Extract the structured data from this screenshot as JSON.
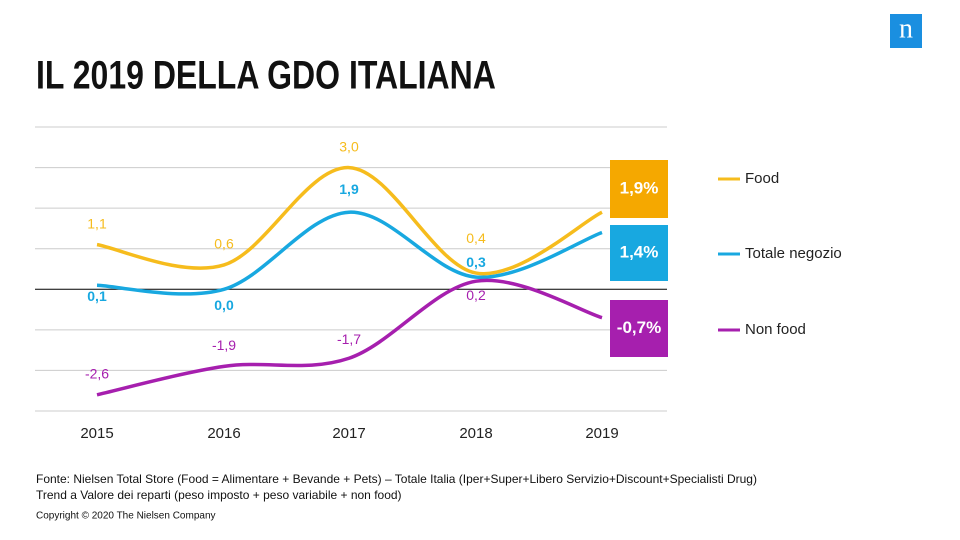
{
  "logo": "n",
  "chart_data": {
    "type": "line",
    "title": "IL 2019 DELLA GDO ITALIANA",
    "categories": [
      "2015",
      "2016",
      "2017",
      "2018",
      "2019"
    ],
    "series": [
      {
        "name": "Food",
        "color": "#f6bc1d",
        "box_color": "#f5a800",
        "values": [
          1.1,
          0.6,
          3.0,
          0.4,
          1.9
        ],
        "value_labels": [
          "1,1",
          "0,6",
          "3,0",
          "0,4",
          "1,9%"
        ]
      },
      {
        "name": "Totale negozio",
        "color": "#18a8e0",
        "box_color": "#18a8e0",
        "values": [
          0.1,
          0.0,
          1.9,
          0.3,
          1.4
        ],
        "value_labels": [
          "0,1",
          "0,0",
          "1,9",
          "0,3",
          "1,4%"
        ]
      },
      {
        "name": "Non food",
        "color": "#a61fae",
        "box_color": "#a61fae",
        "values": [
          -2.6,
          -1.9,
          -1.7,
          0.2,
          -0.7
        ],
        "value_labels": [
          "-2,6",
          "-1,9",
          "-1,7",
          "0,2",
          "-0,7%"
        ]
      }
    ],
    "ylim": [
      -3,
      4
    ],
    "yticks": [
      -3,
      -2,
      -1,
      0,
      1,
      2,
      3,
      4
    ],
    "grid": true,
    "notes": [
      "Fonte: Nielsen Total Store (Food = Alimentare  + Bevande + Pets) – Totale Italia (Iper+Super+Libero  Servizio+Discount+Specialisti  Drug)",
      "Trend a Valore dei reparti (peso imposto + peso variabile + non food)"
    ],
    "copyright": "Copyright © 2020 The Nielsen Company"
  }
}
